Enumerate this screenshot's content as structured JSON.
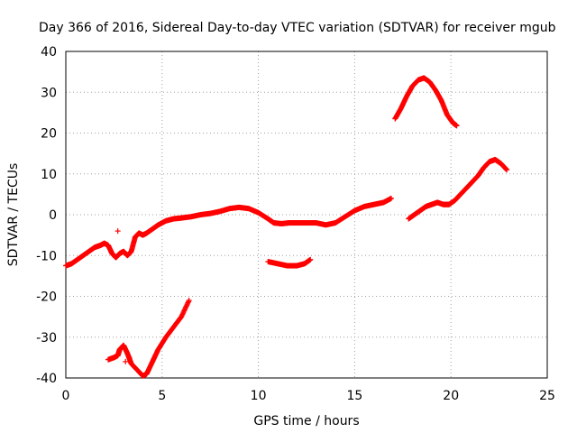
{
  "chart_data": {
    "type": "scatter",
    "title": "Day 366 of 2016, Sidereal Day-to-day VTEC variation (SDTVAR) for receiver mgub",
    "xlabel": "GPS time / hours",
    "ylabel": "SDTVAR / TECUs",
    "xlim": [
      0,
      25
    ],
    "ylim": [
      -40,
      40
    ],
    "xticks": [
      0,
      5,
      10,
      15,
      20,
      25
    ],
    "yticks": [
      -40,
      -30,
      -20,
      -10,
      0,
      10,
      20,
      30,
      40
    ],
    "grid": true,
    "marker_color": "#ff0000",
    "series": [
      {
        "points": [
          [
            0.0,
            -12.5
          ],
          [
            0.3,
            -12.0
          ],
          [
            0.6,
            -11.0
          ],
          [
            0.9,
            -10.0
          ],
          [
            1.2,
            -9.0
          ],
          [
            1.5,
            -8.0
          ],
          [
            1.8,
            -7.5
          ],
          [
            2.0,
            -7.0
          ],
          [
            2.2,
            -7.5
          ],
          [
            2.4,
            -9.5
          ],
          [
            2.6,
            -10.5
          ],
          [
            2.8,
            -9.5
          ],
          [
            3.0,
            -9.0
          ],
          [
            3.2,
            -10.0
          ],
          [
            3.4,
            -9.0
          ],
          [
            3.6,
            -5.5
          ],
          [
            3.8,
            -4.5
          ],
          [
            4.0,
            -5.0
          ],
          [
            4.2,
            -4.5
          ],
          [
            4.5,
            -3.5
          ],
          [
            4.8,
            -2.5
          ],
          [
            5.2,
            -1.5
          ],
          [
            5.6,
            -1.0
          ],
          [
            6.0,
            -0.8
          ],
          [
            6.5,
            -0.5
          ],
          [
            7.0,
            0.0
          ],
          [
            7.5,
            0.3
          ],
          [
            8.0,
            0.8
          ],
          [
            8.5,
            1.5
          ],
          [
            9.0,
            1.8
          ],
          [
            9.5,
            1.5
          ],
          [
            10.0,
            0.5
          ],
          [
            10.5,
            -1.0
          ],
          [
            10.8,
            -2.0
          ],
          [
            11.2,
            -2.2
          ],
          [
            11.6,
            -2.0
          ],
          [
            12.0,
            -2.0
          ],
          [
            12.5,
            -2.0
          ],
          [
            13.0,
            -2.0
          ],
          [
            13.5,
            -2.5
          ],
          [
            14.0,
            -2.0
          ],
          [
            14.5,
            -0.5
          ],
          [
            15.0,
            1.0
          ],
          [
            15.5,
            2.0
          ],
          [
            16.0,
            2.5
          ],
          [
            16.5,
            3.0
          ],
          [
            16.9,
            4.0
          ]
        ]
      },
      {
        "points": [
          [
            2.2,
            -35.5
          ],
          [
            2.5,
            -35.0
          ],
          [
            2.7,
            -34.5
          ],
          [
            2.8,
            -33.0
          ],
          [
            3.0,
            -32.0
          ],
          [
            3.2,
            -34.0
          ],
          [
            3.4,
            -36.5
          ],
          [
            3.7,
            -38.0
          ],
          [
            4.0,
            -39.5
          ],
          [
            4.2,
            -39.0
          ],
          [
            4.5,
            -36.0
          ],
          [
            4.8,
            -33.0
          ],
          [
            5.2,
            -30.0
          ],
          [
            5.6,
            -27.5
          ],
          [
            6.0,
            -25.0
          ],
          [
            6.4,
            -21.0
          ]
        ]
      },
      {
        "points": [
          [
            10.5,
            -11.5
          ],
          [
            11.0,
            -12.0
          ],
          [
            11.5,
            -12.5
          ],
          [
            12.0,
            -12.5
          ],
          [
            12.4,
            -12.0
          ],
          [
            12.7,
            -11.0
          ]
        ]
      },
      {
        "points": [
          [
            17.1,
            23.5
          ],
          [
            17.4,
            26.0
          ],
          [
            17.7,
            29.0
          ],
          [
            18.0,
            31.5
          ],
          [
            18.3,
            33.0
          ],
          [
            18.6,
            33.5
          ],
          [
            18.9,
            32.5
          ],
          [
            19.2,
            30.5
          ],
          [
            19.5,
            28.0
          ],
          [
            19.8,
            24.5
          ],
          [
            20.1,
            22.5
          ],
          [
            20.3,
            21.8
          ]
        ]
      },
      {
        "points": [
          [
            17.8,
            -1.0
          ],
          [
            18.1,
            0.0
          ],
          [
            18.4,
            1.0
          ],
          [
            18.7,
            2.0
          ],
          [
            19.0,
            2.5
          ],
          [
            19.3,
            3.0
          ],
          [
            19.6,
            2.5
          ],
          [
            19.9,
            2.5
          ],
          [
            20.2,
            3.5
          ],
          [
            20.5,
            5.0
          ],
          [
            20.8,
            6.5
          ],
          [
            21.1,
            8.0
          ],
          [
            21.4,
            9.5
          ],
          [
            21.7,
            11.5
          ],
          [
            22.0,
            13.0
          ],
          [
            22.3,
            13.5
          ],
          [
            22.6,
            12.5
          ],
          [
            22.9,
            11.0
          ]
        ]
      }
    ],
    "outliers": [
      [
        2.7,
        -4.0
      ],
      [
        3.1,
        -36.0
      ],
      [
        3.3,
        -35.0
      ]
    ]
  }
}
